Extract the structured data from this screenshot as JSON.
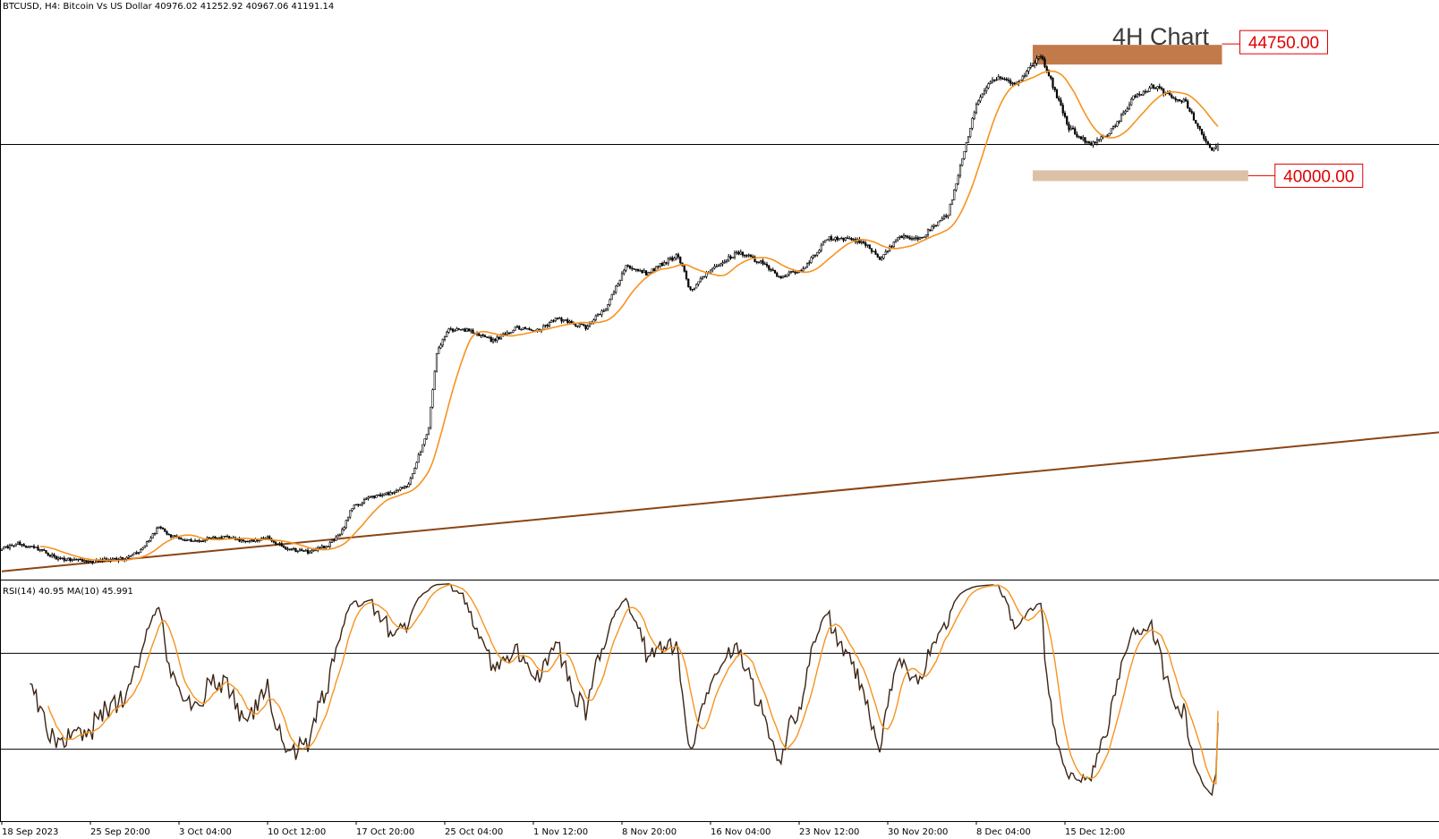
{
  "header": {
    "symbol_line": "BTCUSD, H4:  Bitcoin Vs US Dollar  40976.02 41252.92 40967.06 41191.14"
  },
  "chart_data": {
    "type": "candlestick",
    "symbol": "BTCUSD",
    "timeframe": "H4",
    "description": "Bitcoin Vs US Dollar",
    "ohlc_last": {
      "open": 40976.02,
      "high": 41252.92,
      "low": 40967.06,
      "close": 41191.14
    },
    "annotation": "4H Chart",
    "levels": [
      {
        "label": "44750.00",
        "value": 44750.0,
        "zone_color": "#c27a4a"
      },
      {
        "label": "40000.00",
        "value": 40000.0,
        "zone_color": "#dcc1a7"
      }
    ],
    "horizontal_line": 41191.14,
    "x_ticks": [
      "18 Sep 2023",
      "25 Sep 20:00",
      "3 Oct 04:00",
      "10 Oct 12:00",
      "17 Oct 20:00",
      "25 Oct 04:00",
      "1 Nov 12:00",
      "8 Nov 20:00",
      "16 Nov 04:00",
      "23 Nov 12:00",
      "30 Nov 20:00",
      "8 Dec 04:00",
      "15 Dec 12:00"
    ],
    "x_tick_bar_index": [
      0,
      44,
      88,
      132,
      176,
      220,
      264,
      308,
      352,
      396,
      440,
      484,
      528
    ],
    "y_range": [
      25500,
      46400
    ],
    "price_path": [
      [
        0,
        26600
      ],
      [
        8,
        26800
      ],
      [
        18,
        26600
      ],
      [
        28,
        26250
      ],
      [
        44,
        26150
      ],
      [
        60,
        26250
      ],
      [
        68,
        26500
      ],
      [
        78,
        27400
      ],
      [
        84,
        27050
      ],
      [
        96,
        26900
      ],
      [
        110,
        27050
      ],
      [
        122,
        26850
      ],
      [
        132,
        27000
      ],
      [
        142,
        26600
      ],
      [
        152,
        26500
      ],
      [
        162,
        26750
      ],
      [
        168,
        27100
      ],
      [
        174,
        28100
      ],
      [
        184,
        28500
      ],
      [
        192,
        28600
      ],
      [
        202,
        28900
      ],
      [
        212,
        31000
      ],
      [
        216,
        33700
      ],
      [
        222,
        34500
      ],
      [
        232,
        34500
      ],
      [
        244,
        34100
      ],
      [
        256,
        34600
      ],
      [
        266,
        34500
      ],
      [
        276,
        34900
      ],
      [
        290,
        34600
      ],
      [
        300,
        35300
      ],
      [
        310,
        36800
      ],
      [
        320,
        36550
      ],
      [
        336,
        37200
      ],
      [
        342,
        35900
      ],
      [
        352,
        36700
      ],
      [
        366,
        37300
      ],
      [
        378,
        36900
      ],
      [
        386,
        36400
      ],
      [
        398,
        36700
      ],
      [
        410,
        37800
      ],
      [
        420,
        37800
      ],
      [
        430,
        37600
      ],
      [
        436,
        37000
      ],
      [
        446,
        37900
      ],
      [
        456,
        37800
      ],
      [
        470,
        38700
      ],
      [
        476,
        40400
      ],
      [
        484,
        42600
      ],
      [
        492,
        43600
      ],
      [
        504,
        43400
      ],
      [
        516,
        44400
      ],
      [
        520,
        43700
      ],
      [
        530,
        41800
      ],
      [
        540,
        41200
      ],
      [
        550,
        41600
      ],
      [
        556,
        42200
      ],
      [
        562,
        42900
      ],
      [
        572,
        43300
      ],
      [
        582,
        42900
      ],
      [
        588,
        42700
      ],
      [
        594,
        41800
      ],
      [
        600,
        41000
      ],
      [
        604,
        41191
      ]
    ],
    "ma_period": 20,
    "rsi": {
      "label": "RSI(14) 40.95 MA(10) 45.991",
      "rsi_value": 40.95,
      "ma_value": 45.991,
      "period": 14,
      "ma_period": 10,
      "levels": [
        70,
        30
      ],
      "range": [
        0,
        100
      ]
    },
    "trendline": {
      "points": [
        [
          0,
          25800
        ],
        [
          620,
          30150
        ]
      ],
      "color": "#8b4513"
    }
  }
}
